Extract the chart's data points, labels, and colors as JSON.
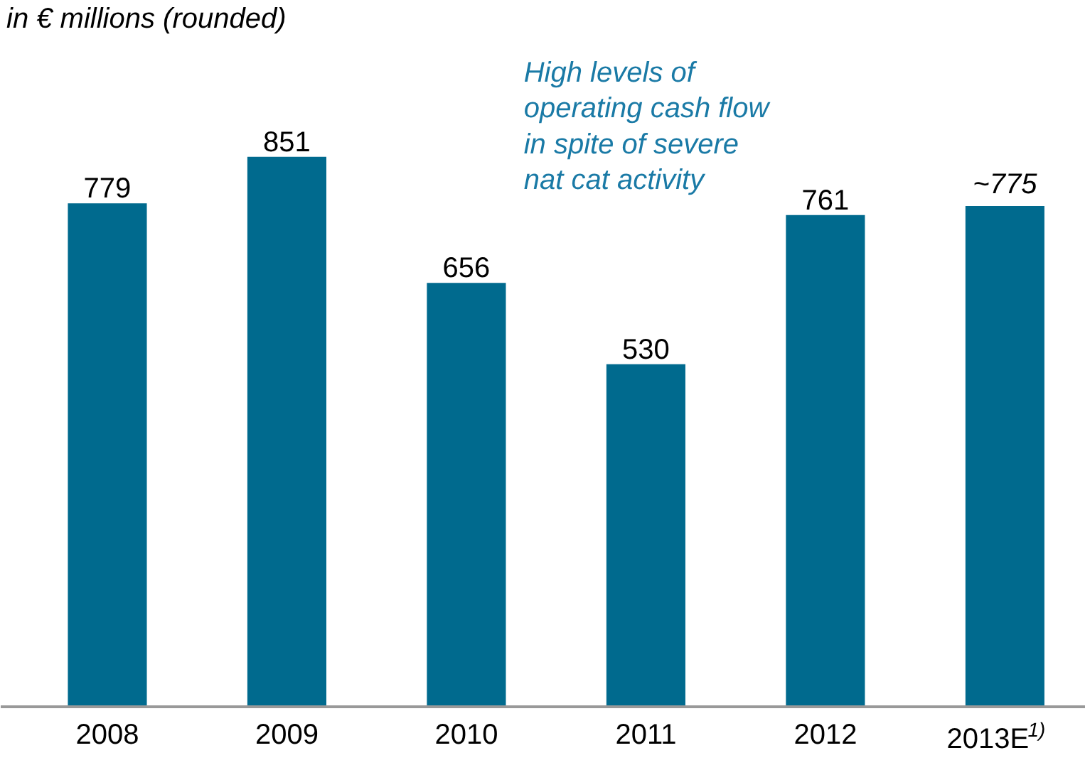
{
  "chart_data": {
    "type": "bar",
    "title": "in € millions (rounded)",
    "categories": [
      "2008",
      "2009",
      "2010",
      "2011",
      "2012",
      "2013E$^{1)}$"
    ],
    "values": [
      779,
      851,
      656,
      530,
      761,
      775
    ],
    "value_labels": [
      "779",
      "851",
      "656",
      "530",
      "761",
      "~775"
    ],
    "color": "#006a8e",
    "annotations": [
      "High levels of operating cash flow in spite of severe nat cat activity"
    ],
    "grid": false
  }
}
